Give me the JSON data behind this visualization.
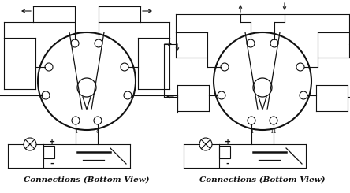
{
  "bg_color": "#ffffff",
  "line_color": "#111111",
  "title": "Connections (Bottom View)",
  "title_fontsize": 7.5,
  "figsize": [
    4.44,
    2.45
  ],
  "dpi": 100
}
